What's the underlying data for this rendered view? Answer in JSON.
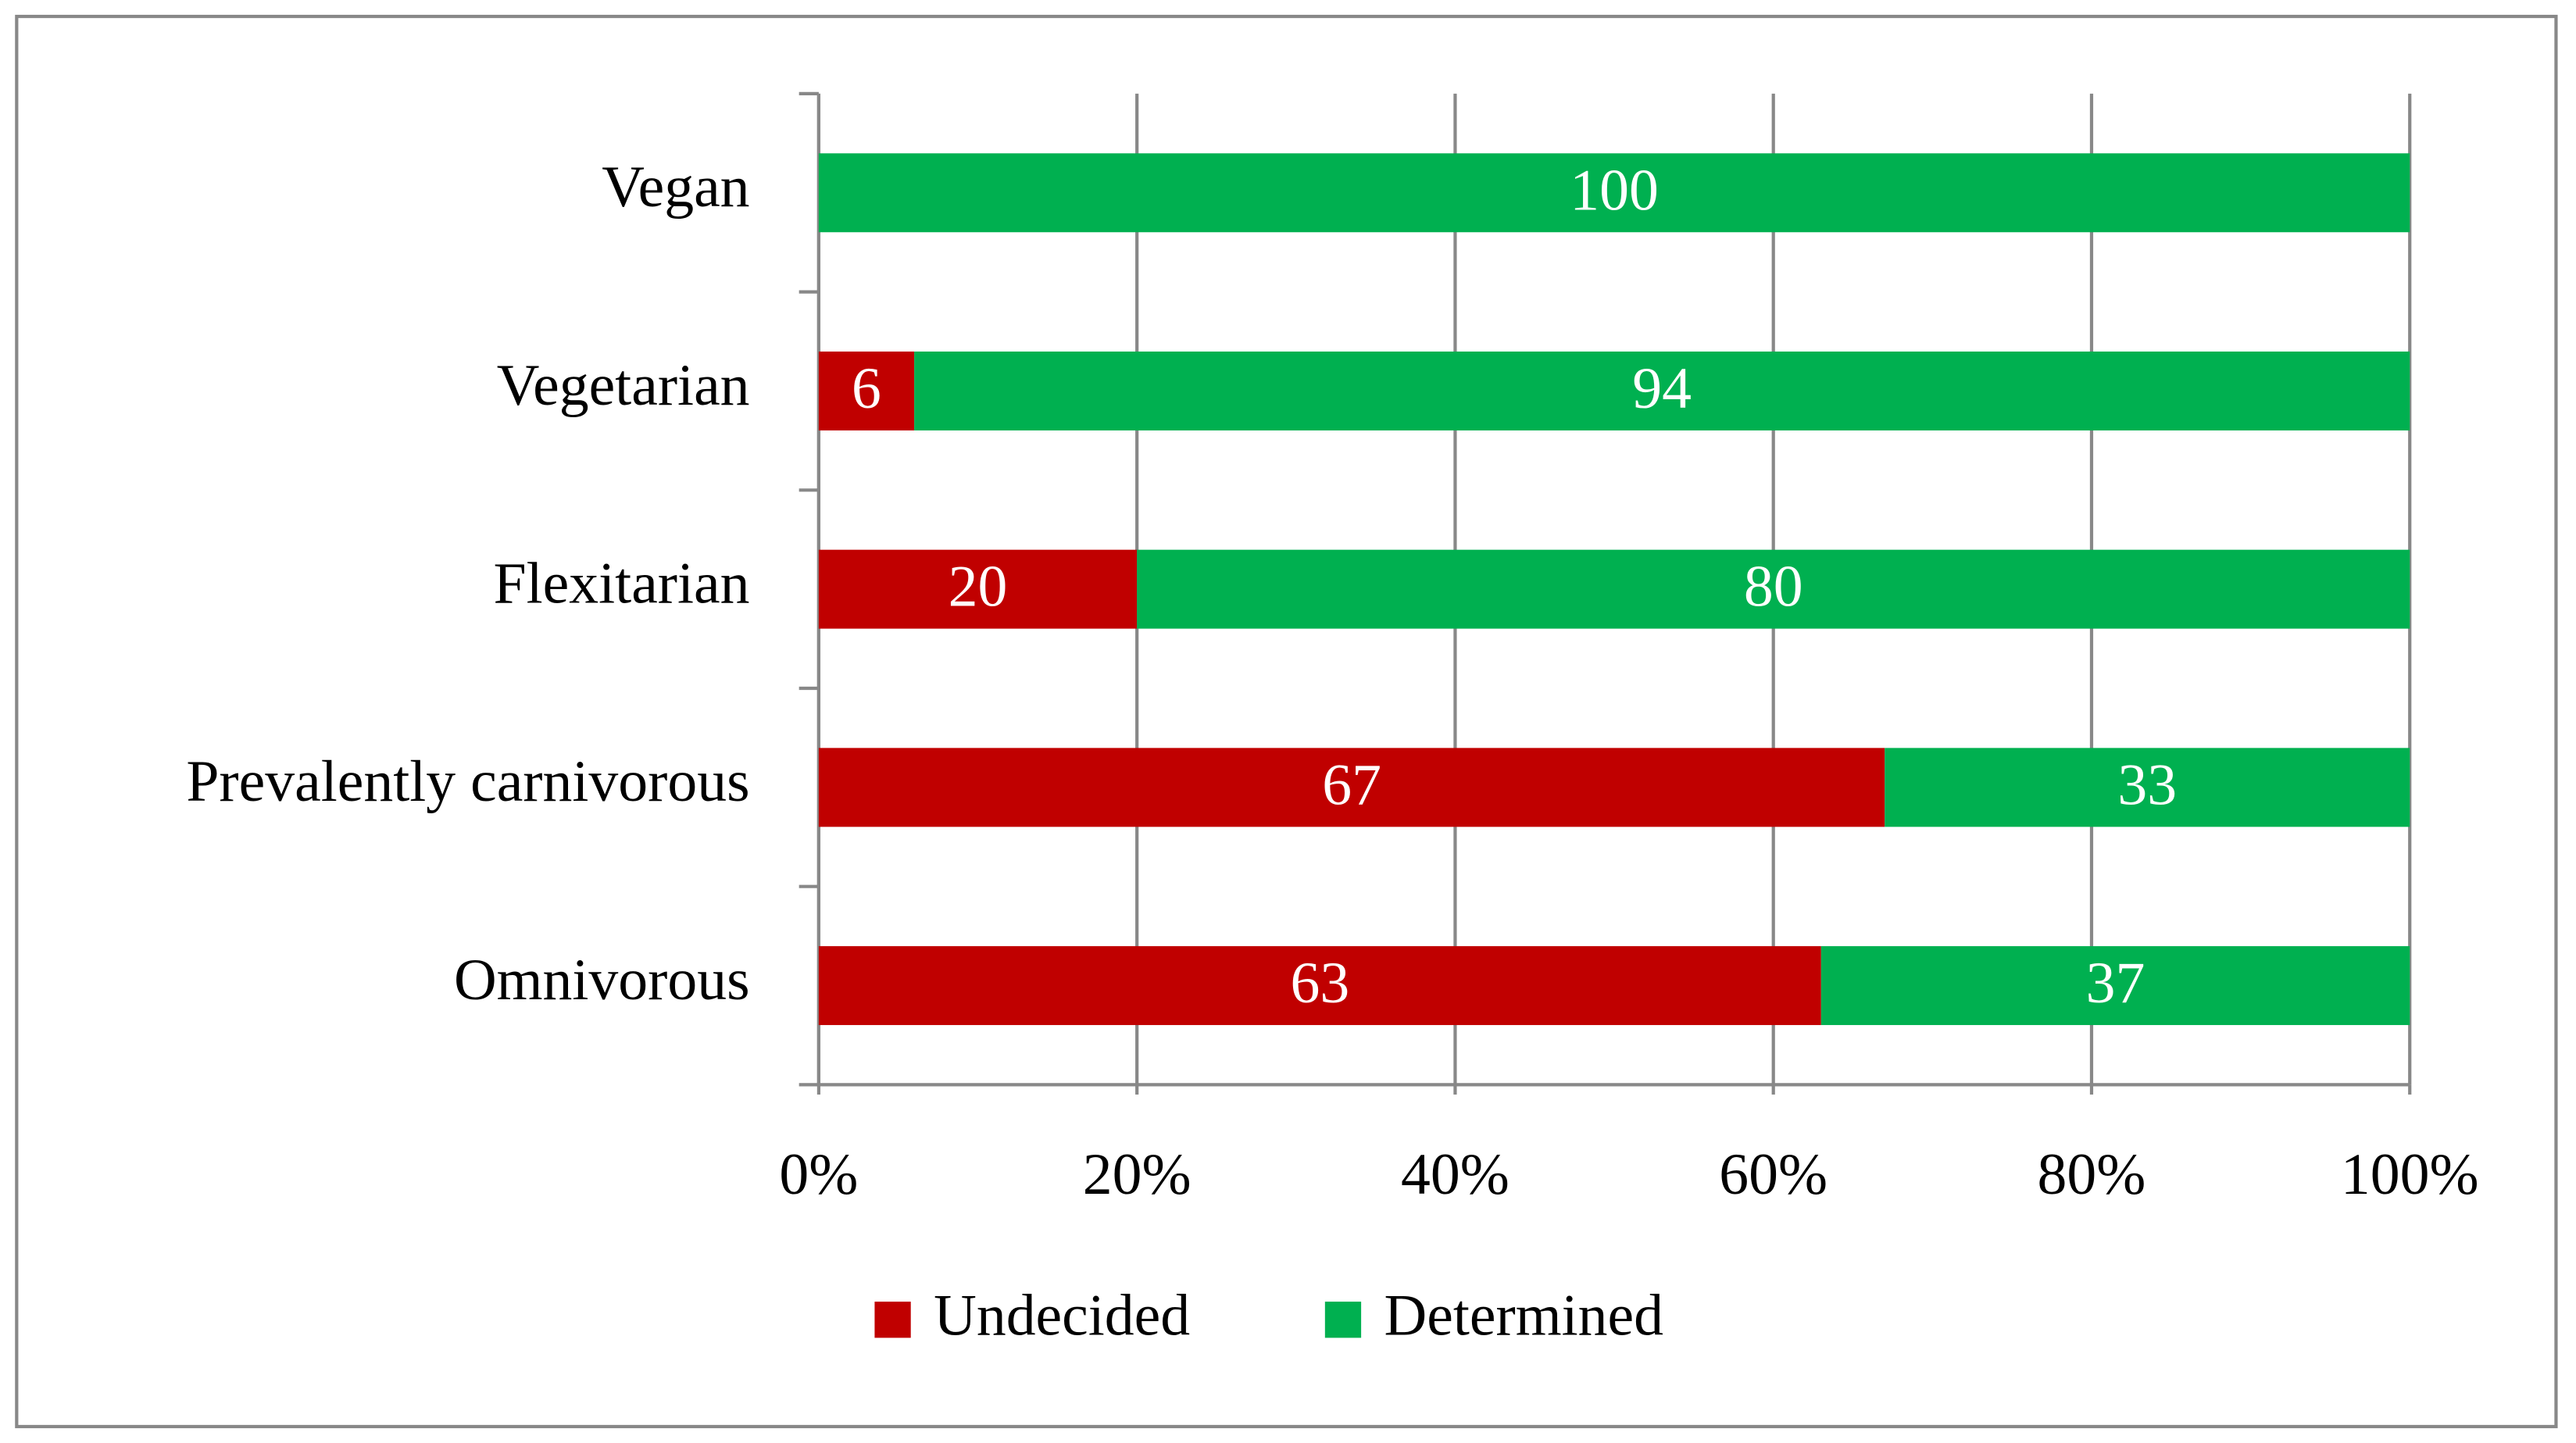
{
  "chart_data": {
    "type": "stacked_barh",
    "categories": [
      "Vegan",
      "Vegetarian",
      "Flexitarian",
      "Prevalently carnivorous",
      "Omnivorous"
    ],
    "series": [
      {
        "name": "Undecided",
        "color": "#c00000",
        "values": [
          0,
          6,
          20,
          67,
          63
        ]
      },
      {
        "name": "Determined",
        "color": "#00b050",
        "values": [
          100,
          94,
          80,
          33,
          37
        ]
      }
    ],
    "xlim": [
      0,
      100
    ],
    "xticks": [
      {
        "value": 0,
        "label": "0%"
      },
      {
        "value": 20,
        "label": "20%"
      },
      {
        "value": 40,
        "label": "40%"
      },
      {
        "value": 60,
        "label": "60%"
      },
      {
        "value": 80,
        "label": "80%"
      },
      {
        "value": 100,
        "label": "100%"
      }
    ],
    "grid": true,
    "legend": "bottom"
  }
}
